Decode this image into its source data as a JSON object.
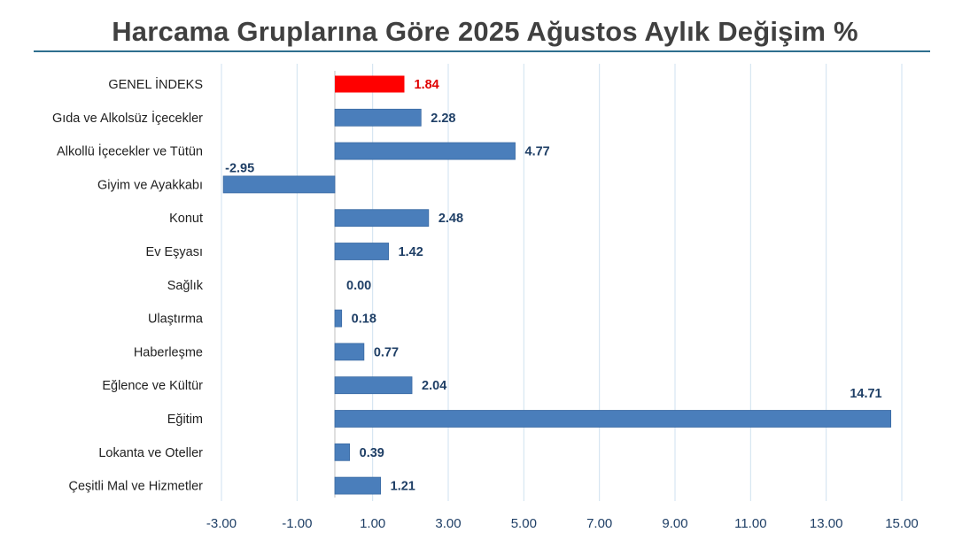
{
  "title": "Harcama Gruplarına Göre 2025 Ağustos Aylık Değişim %",
  "colors": {
    "bar": "#4a7ebb",
    "highlight": "#ff0000",
    "value_label": "#1f3f66",
    "highlight_label": "#e00000",
    "gridline": "#cfe2f0"
  },
  "chart_data": {
    "type": "bar",
    "orientation": "horizontal",
    "title": "Harcama Gruplarına Göre 2025 Ağustos Aylık Değişim %",
    "categories": [
      "GENEL İNDEKS",
      "Gıda ve Alkolsüz İçecekler",
      "Alkollü İçecekler ve Tütün",
      "Giyim ve Ayakkabı",
      "Konut",
      "Ev Eşyası",
      "Sağlık",
      "Ulaştırma",
      "Haberleşme",
      "Eğlence ve Kültür",
      "Eğitim",
      "Lokanta ve Oteller",
      "Çeşitli Mal ve Hizmetler"
    ],
    "values": [
      1.84,
      2.28,
      4.77,
      -2.95,
      2.48,
      1.42,
      0.0,
      0.18,
      0.77,
      2.04,
      14.71,
      0.39,
      1.21
    ],
    "value_labels": [
      "1.84",
      "2.28",
      "4.77",
      "-2.95",
      "2.48",
      "1.42",
      "0.00",
      "0.18",
      "0.77",
      "2.04",
      "14.71",
      "0.39",
      "1.21"
    ],
    "highlight_index": 0,
    "xlim": [
      -3.0,
      15.0
    ],
    "xticks": [
      -3,
      -1,
      1,
      3,
      5,
      7,
      9,
      11,
      13,
      15
    ],
    "xtick_labels": [
      "-3.00",
      "-1.00",
      "1.00",
      "3.00",
      "5.00",
      "7.00",
      "9.00",
      "11.00",
      "13.00",
      "15.00"
    ],
    "grid": true,
    "legend": "none"
  }
}
